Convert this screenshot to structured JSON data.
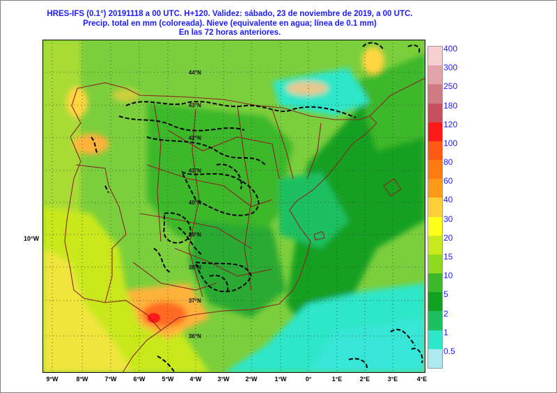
{
  "title": {
    "line1": "HRES-IFS (0.1°) 20191118 a 00 UTC.  H+120. Validez: sábado, 23 de noviembre de 2019,  a  00 UTC.",
    "line2": "Precip. total en mm (coloreada). Nieve (equivalente en agua; línea de 0.1 mm)",
    "line3": "En las 72 horas anteriores."
  },
  "side_label": "10°W",
  "longitude_labels": [
    "9°W",
    "8°W",
    "7°W",
    "6°W",
    "5°W",
    "4°W",
    "3°W",
    "2°W",
    "1°W",
    "0°",
    "1°E",
    "2°E",
    "3°E",
    "4°E"
  ],
  "latitude_labels": [
    "44°N",
    "43°N",
    "42°N",
    "41°N",
    "40°N",
    "39°N",
    "38°N",
    "37°N",
    "36°N"
  ],
  "colorbar": {
    "labels": [
      "400",
      "300",
      "250",
      "180",
      "120",
      "100",
      "80",
      "60",
      "40",
      "30",
      "20",
      "15",
      "10",
      "5",
      "2",
      "1",
      "0.5"
    ],
    "colors": [
      "#f6d0d0",
      "#e3a3a8",
      "#d07a84",
      "#c8505e",
      "#ff1a1a",
      "#ff5a14",
      "#ff7a10",
      "#ff9a18",
      "#ffcf3a",
      "#ffff1a",
      "#c8e81e",
      "#8ed81e",
      "#3cb82a",
      "#12a020",
      "#1cc060",
      "#2ee6c8",
      "#aee8ef"
    ]
  },
  "colors": {
    "title": "#1a1aff",
    "green_bg": "#7ccf3c",
    "sea_cyan": "#38e0b4",
    "snow_line": "#000000",
    "borders": "#8b2323"
  }
}
